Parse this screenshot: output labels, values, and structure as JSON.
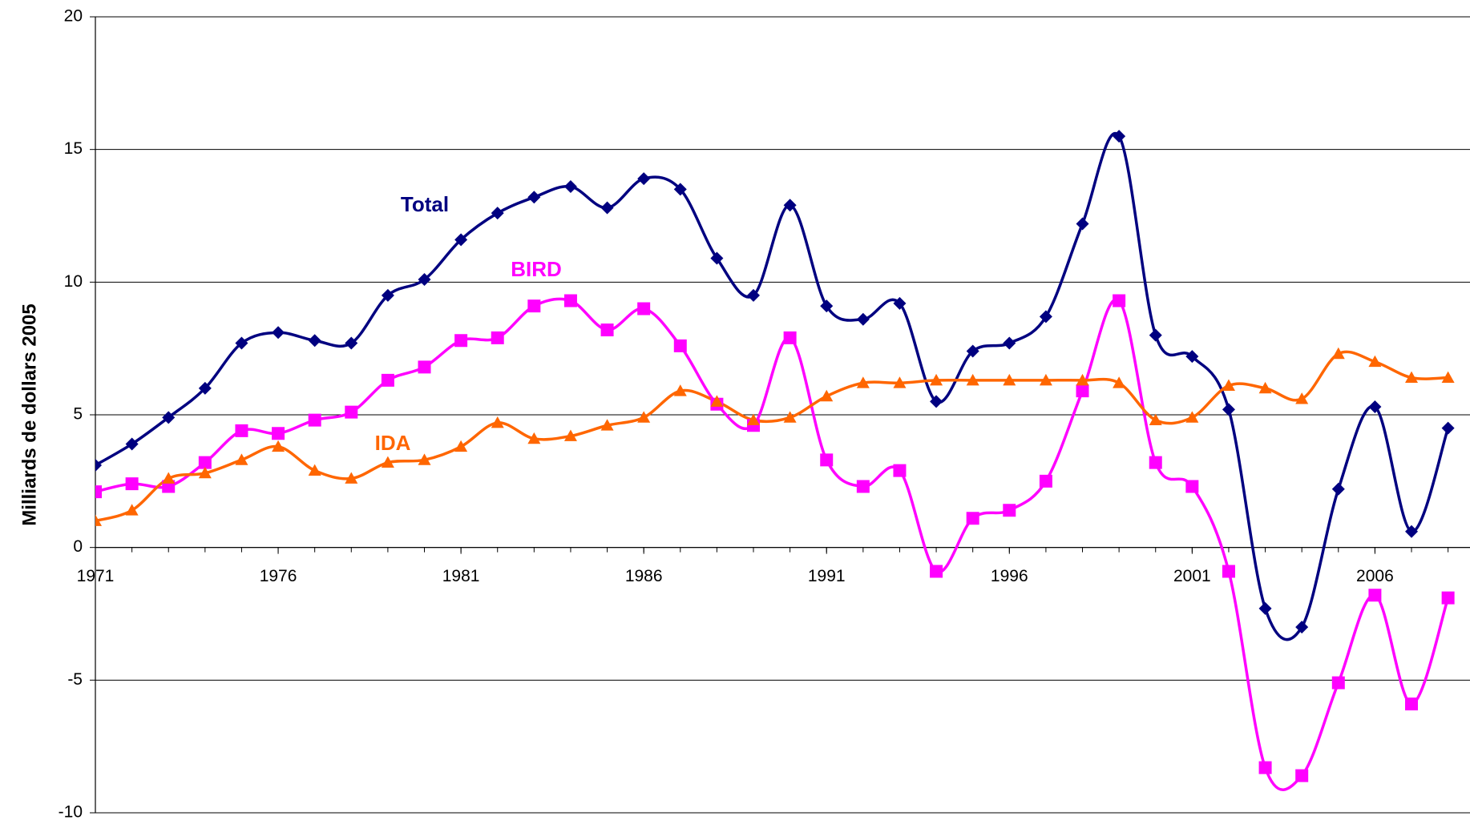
{
  "chart_data": {
    "type": "line",
    "y_label": "Milliards de dollars 2005",
    "x": [
      1971,
      1972,
      1973,
      1974,
      1975,
      1976,
      1977,
      1978,
      1979,
      1980,
      1981,
      1982,
      1983,
      1984,
      1985,
      1986,
      1987,
      1988,
      1989,
      1990,
      1991,
      1992,
      1993,
      1994,
      1995,
      1996,
      1997,
      1998,
      1999,
      2000,
      2001,
      2002,
      2003,
      2004,
      2005,
      2006,
      2007,
      2008
    ],
    "series": [
      {
        "name": "Total",
        "color": "#000080",
        "marker": "diamond",
        "values": [
          3.1,
          3.9,
          4.9,
          6.0,
          7.7,
          8.1,
          7.8,
          7.7,
          9.5,
          10.1,
          11.6,
          12.6,
          13.2,
          13.6,
          12.8,
          13.9,
          13.5,
          10.9,
          9.5,
          12.9,
          9.1,
          8.6,
          9.2,
          5.5,
          7.4,
          7.7,
          8.7,
          12.2,
          15.5,
          8.0,
          7.2,
          5.2,
          -2.3,
          -3.0,
          2.2,
          5.3,
          0.6,
          4.5
        ]
      },
      {
        "name": "BIRD",
        "color": "#ff00ff",
        "marker": "square",
        "values": [
          2.1,
          2.4,
          2.3,
          3.2,
          4.4,
          4.3,
          4.8,
          5.1,
          6.3,
          6.8,
          7.8,
          7.9,
          9.1,
          9.3,
          8.2,
          9.0,
          7.6,
          5.4,
          4.6,
          7.9,
          3.3,
          2.3,
          2.9,
          -0.9,
          1.1,
          1.4,
          2.5,
          5.9,
          9.3,
          3.2,
          2.3,
          -0.9,
          -8.3,
          -8.6,
          -5.1,
          -1.8,
          -5.9,
          -1.9
        ]
      },
      {
        "name": "IDA",
        "color": "#ff6600",
        "marker": "triangle",
        "values": [
          1.0,
          1.4,
          2.6,
          2.8,
          3.3,
          3.8,
          2.9,
          2.6,
          3.2,
          3.3,
          3.8,
          4.7,
          4.1,
          4.2,
          4.6,
          4.9,
          5.9,
          5.5,
          4.8,
          4.9,
          5.7,
          6.2,
          6.2,
          6.3,
          6.3,
          6.3,
          6.3,
          6.3,
          6.2,
          4.8,
          4.9,
          6.1,
          6.0,
          5.6,
          7.3,
          7.0,
          6.4,
          6.4
        ]
      }
    ],
    "xlim": [
      1971,
      2008.6
    ],
    "xticks": [
      1971,
      1976,
      1981,
      1986,
      1991,
      1996,
      2001,
      2006
    ],
    "ylim": [
      -10,
      20
    ],
    "yticks": [
      -10,
      -5,
      0,
      5,
      10,
      15,
      20
    ],
    "grid": true,
    "smooth": true
  }
}
